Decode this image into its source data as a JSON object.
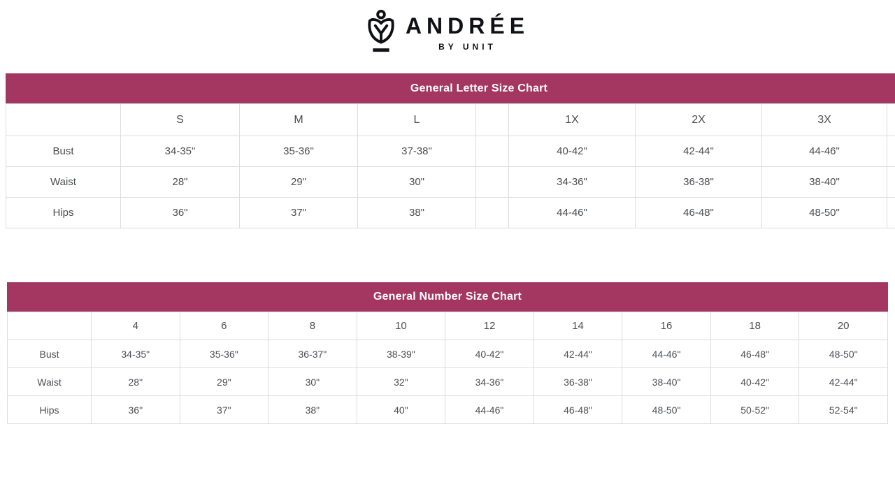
{
  "logo": {
    "brand": "ANDRÉE",
    "tagline": "BY UNIT",
    "icon": "tulip-flower-icon"
  },
  "colors": {
    "band_background": "#a33762",
    "band_text": "#ffffff",
    "cell_text": "#4c4e52",
    "table_border": "#dddddd",
    "logo": "#101114",
    "page_background": "#ffffff"
  },
  "letter_chart": {
    "title": "General Letter Size Chart",
    "columns": [
      "",
      "S",
      "M",
      "L",
      "",
      "1X",
      "2X",
      "3X",
      ""
    ],
    "rows": [
      {
        "label": "Bust",
        "values": [
          "34-35\"",
          "35-36\"",
          "37-38\"",
          "",
          "40-42\"",
          "42-44\"",
          "44-46\"",
          ""
        ]
      },
      {
        "label": "Waist",
        "values": [
          "28\"",
          "29\"",
          "30\"",
          "",
          "34-36\"",
          "36-38\"",
          "38-40\"",
          ""
        ]
      },
      {
        "label": "Hips",
        "values": [
          "36\"",
          "37\"",
          "38\"",
          "",
          "44-46\"",
          "46-48\"",
          "48-50\"",
          ""
        ]
      }
    ]
  },
  "number_chart": {
    "title": "General Number Size Chart",
    "columns": [
      "",
      "4",
      "6",
      "8",
      "10",
      "12",
      "14",
      "16",
      "18",
      "20"
    ],
    "rows": [
      {
        "label": "Bust",
        "values": [
          "34-35\"",
          "35-36\"",
          "36-37\"",
          "38-39\"",
          "40-42\"",
          "42-44\"",
          "44-46\"",
          "46-48\"",
          "48-50\""
        ]
      },
      {
        "label": "Waist",
        "values": [
          "28\"",
          "29\"",
          "30\"",
          "32\"",
          "34-36\"",
          "36-38\"",
          "38-40\"",
          "40-42\"",
          "42-44\""
        ]
      },
      {
        "label": "Hips",
        "values": [
          "36\"",
          "37\"",
          "38\"",
          "40\"",
          "44-46\"",
          "46-48\"",
          "48-50\"",
          "50-52\"",
          "52-54\""
        ]
      }
    ]
  }
}
